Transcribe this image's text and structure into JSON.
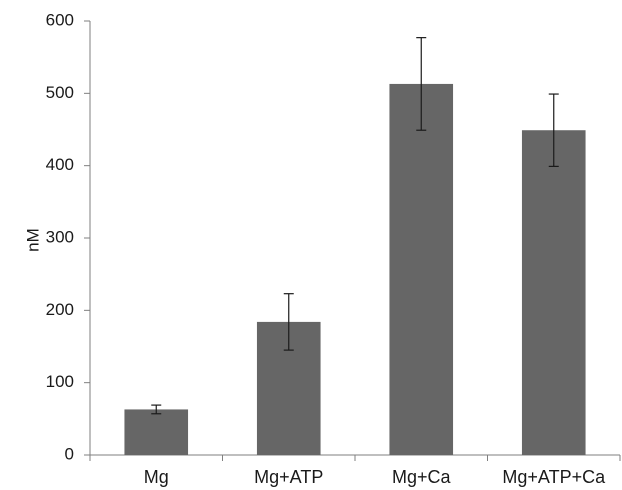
{
  "chart_data": {
    "type": "bar",
    "y_label": "nM",
    "categories": [
      "Mg",
      "Mg+ATP",
      "Mg+Ca",
      "Mg+ATP+Ca"
    ],
    "values": [
      63,
      184,
      513,
      449
    ],
    "errors": [
      6,
      39,
      64,
      50
    ],
    "color": "#666666",
    "ylim": [
      0,
      600
    ],
    "yticks": [
      0,
      100,
      200,
      300,
      400,
      500,
      600
    ],
    "grid": false
  }
}
